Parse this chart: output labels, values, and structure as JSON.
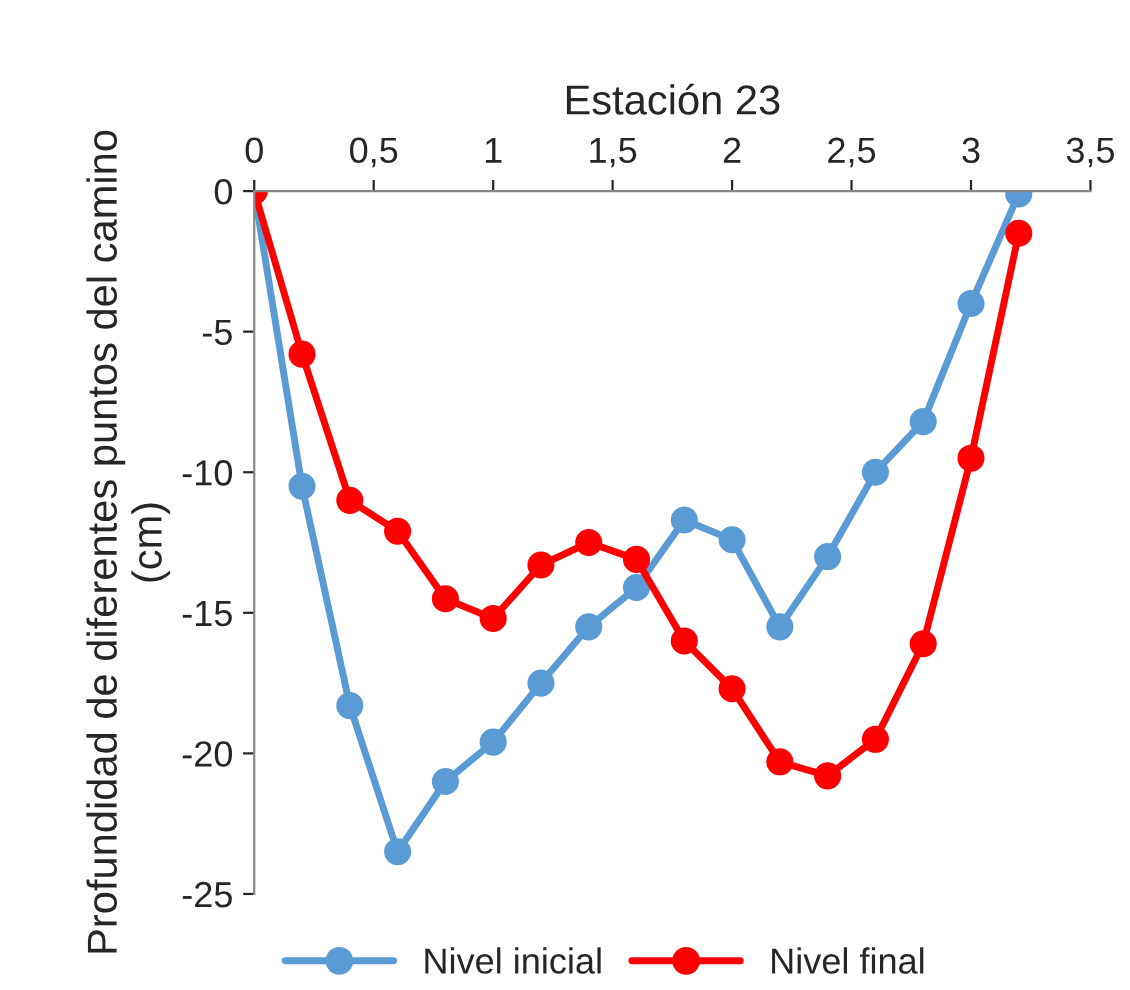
{
  "chart_data": {
    "type": "line",
    "xlabel": "Estación 23",
    "ylabel": "Profundidad de diferentes puntos del camino (cm)",
    "x": [
      0,
      0.2,
      0.4,
      0.6,
      0.8,
      1.0,
      1.2,
      1.4,
      1.6,
      1.8,
      2.0,
      2.2,
      2.4,
      2.6,
      2.8,
      3.0,
      3.2
    ],
    "series": [
      {
        "name": "Nivel inicial",
        "color": "#5b9bd5",
        "values": [
          0,
          -10.5,
          -18.3,
          -23.5,
          -21,
          -19.6,
          -17.5,
          -15.5,
          -14.1,
          -11.7,
          -12.4,
          -15.5,
          -13,
          -10,
          -8.2,
          -4,
          -0.1
        ]
      },
      {
        "name": "Nivel final",
        "color": "#ff0000",
        "values": [
          0,
          -5.8,
          -11,
          -12.1,
          -14.5,
          -15.2,
          -13.3,
          -12.5,
          -13.1,
          -16,
          -17.7,
          -20.3,
          -20.8,
          -19.5,
          -16.1,
          -9.5,
          -1.5
        ]
      }
    ],
    "xlim": [
      0,
      3.5
    ],
    "xticks": [
      0,
      {
        "value": 0.5,
        "label": "0,5"
      },
      1,
      {
        "value": 1.5,
        "label": "1,5"
      },
      2,
      {
        "value": 2.5,
        "label": "2,5"
      },
      3,
      {
        "value": 3.5,
        "label": "3,5"
      }
    ],
    "ylim": [
      -25,
      0
    ],
    "yticks": [
      {
        "value": -25,
        "label": "-25"
      },
      {
        "value": -20,
        "label": "-20"
      },
      {
        "value": -15,
        "label": "-15"
      },
      {
        "value": -10,
        "label": "-10"
      },
      {
        "value": -5,
        "label": "-5"
      },
      0
    ],
    "marker": "circle",
    "line_style": "solid",
    "legend": "bottom",
    "grid": false
  }
}
